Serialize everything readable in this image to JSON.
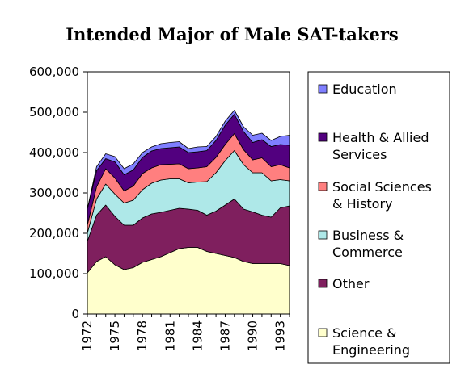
{
  "chart_data": {
    "type": "area",
    "title": "Intended Major of Male SAT-takers",
    "xlabel": "",
    "ylabel": "",
    "stacked": true,
    "x": [
      1972,
      1973,
      1974,
      1975,
      1976,
      1977,
      1978,
      1979,
      1980,
      1981,
      1982,
      1983,
      1984,
      1985,
      1986,
      1987,
      1988,
      1989,
      1990,
      1991,
      1992,
      1993,
      1994
    ],
    "x_tick_labels": [
      "1972",
      "1975",
      "1978",
      "1981",
      "1984",
      "1987",
      "1990",
      "1993"
    ],
    "ylim": [
      0,
      600000
    ],
    "y_ticks": [
      0,
      100000,
      200000,
      300000,
      400000,
      500000,
      600000
    ],
    "y_tick_labels": [
      "0",
      "100,000",
      "200,000",
      "300,000",
      "400,000",
      "500,000",
      "600,000"
    ],
    "series": [
      {
        "name": "Science & Engineering",
        "legend_lines": [
          "Science &",
          "Engineering"
        ],
        "color": "#ffffcc",
        "values": [
          102000,
          130000,
          142000,
          122000,
          110000,
          115000,
          128000,
          135000,
          142000,
          152000,
          162000,
          165000,
          165000,
          155000,
          150000,
          145000,
          140000,
          130000,
          125000,
          125000,
          125000,
          125000,
          120000
        ]
      },
      {
        "name": "Other",
        "legend_lines": [
          "Other"
        ],
        "color": "#7f1f5e",
        "values": [
          78000,
          115000,
          128000,
          120000,
          110000,
          105000,
          110000,
          113000,
          110000,
          105000,
          100000,
          95000,
          92000,
          90000,
          105000,
          125000,
          145000,
          130000,
          128000,
          120000,
          115000,
          138000,
          148000
        ]
      },
      {
        "name": "Business & Commerce",
        "legend_lines": [
          "Business &",
          "Commerce"
        ],
        "color": "#aee8e8",
        "values": [
          20000,
          40000,
          52000,
          55000,
          55000,
          62000,
          70000,
          76000,
          80000,
          78000,
          73000,
          65000,
          70000,
          83000,
          95000,
          110000,
          120000,
          110000,
          97000,
          105000,
          90000,
          70000,
          62000
        ]
      },
      {
        "name": "Social Sciences & History",
        "legend_lines": [
          "Social Sciences",
          "& History"
        ],
        "color": "#ff7f7f",
        "values": [
          20000,
          30000,
          38000,
          40000,
          30000,
          35000,
          40000,
          38000,
          38000,
          36000,
          37000,
          35000,
          35000,
          37000,
          38000,
          40000,
          42000,
          37000,
          32000,
          37000,
          35000,
          37000,
          32000
        ]
      },
      {
        "name": "Health & Allied Services",
        "legend_lines": [
          "Health & Allied",
          "Services"
        ],
        "color": "#52007f",
        "values": [
          40000,
          40000,
          25000,
          40000,
          40000,
          40000,
          40000,
          42000,
          40000,
          41000,
          42000,
          40000,
          40000,
          40000,
          42000,
          48000,
          48000,
          45000,
          43000,
          45000,
          50000,
          50000,
          56000
        ]
      },
      {
        "name": "Education",
        "legend_lines": [
          "Education"
        ],
        "color": "#7f7fff",
        "values": [
          0,
          10000,
          12000,
          13000,
          15000,
          15000,
          12000,
          10000,
          12000,
          13000,
          13000,
          10000,
          12000,
          10000,
          10000,
          10000,
          10000,
          12000,
          18000,
          16000,
          15000,
          20000,
          25000
        ]
      }
    ]
  }
}
